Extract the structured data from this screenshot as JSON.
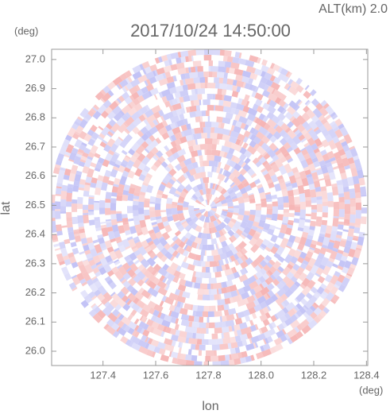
{
  "chart_data": {
    "type": "radar-ppi",
    "title": "2017/10/24 14:50:00",
    "annotation": "ALT(km) 2.0",
    "xlabel": "lon",
    "ylabel": "lat",
    "x_unit": "(deg)",
    "y_unit": "(deg)",
    "xlim": [
      127.205,
      128.405
    ],
    "ylim": [
      25.951,
      27.035
    ],
    "xticks": [
      127.4,
      127.6,
      127.8,
      {
        "value": 128,
        "label": "128.0"
      },
      128.2,
      128.4
    ],
    "yticks": [
      {
        "value": 26,
        "label": "26.0"
      },
      26.1,
      26.2,
      26.3,
      26.4,
      26.5,
      26.6,
      26.7,
      26.8,
      26.9,
      {
        "value": 27,
        "label": "27.0"
      }
    ]
  }
}
